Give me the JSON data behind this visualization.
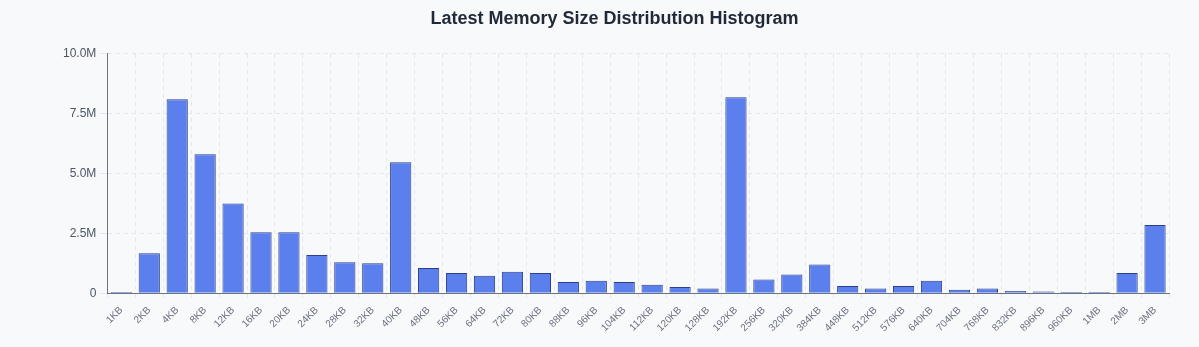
{
  "chart_data": {
    "type": "bar",
    "title": "Latest Memory Size Distribution Histogram",
    "categories": [
      "1KB",
      "2KB",
      "4KB",
      "8KB",
      "12KB",
      "16KB",
      "20KB",
      "24KB",
      "28KB",
      "32KB",
      "40KB",
      "48KB",
      "56KB",
      "64KB",
      "72KB",
      "80KB",
      "88KB",
      "96KB",
      "104KB",
      "112KB",
      "120KB",
      "128KB",
      "192KB",
      "256KB",
      "320KB",
      "384KB",
      "448KB",
      "512KB",
      "576KB",
      "640KB",
      "704KB",
      "768KB",
      "832KB",
      "896KB",
      "960KB",
      "1MB",
      "2MB",
      "3MB"
    ],
    "values": [
      0.05,
      1.67,
      8.1,
      5.8,
      3.75,
      2.55,
      2.55,
      1.6,
      1.3,
      1.25,
      5.47,
      1.05,
      0.85,
      0.73,
      0.9,
      0.85,
      0.47,
      0.52,
      0.47,
      0.36,
      0.26,
      0.2,
      8.18,
      0.57,
      0.78,
      1.2,
      0.3,
      0.2,
      0.3,
      0.52,
      0.15,
      0.2,
      0.1,
      0.07,
      0.05,
      0.05,
      0.85,
      2.85
    ],
    "color": "#5b80ee",
    "ylim": [
      0,
      10
    ],
    "yticks": [
      0,
      {
        "value": 2.5,
        "label": "2.5M"
      },
      {
        "value": 5,
        "label": "5.0M"
      },
      {
        "value": 7.5,
        "label": "7.5M"
      },
      {
        "value": 10,
        "label": "10.0M"
      }
    ],
    "grid": true,
    "legend": false
  }
}
